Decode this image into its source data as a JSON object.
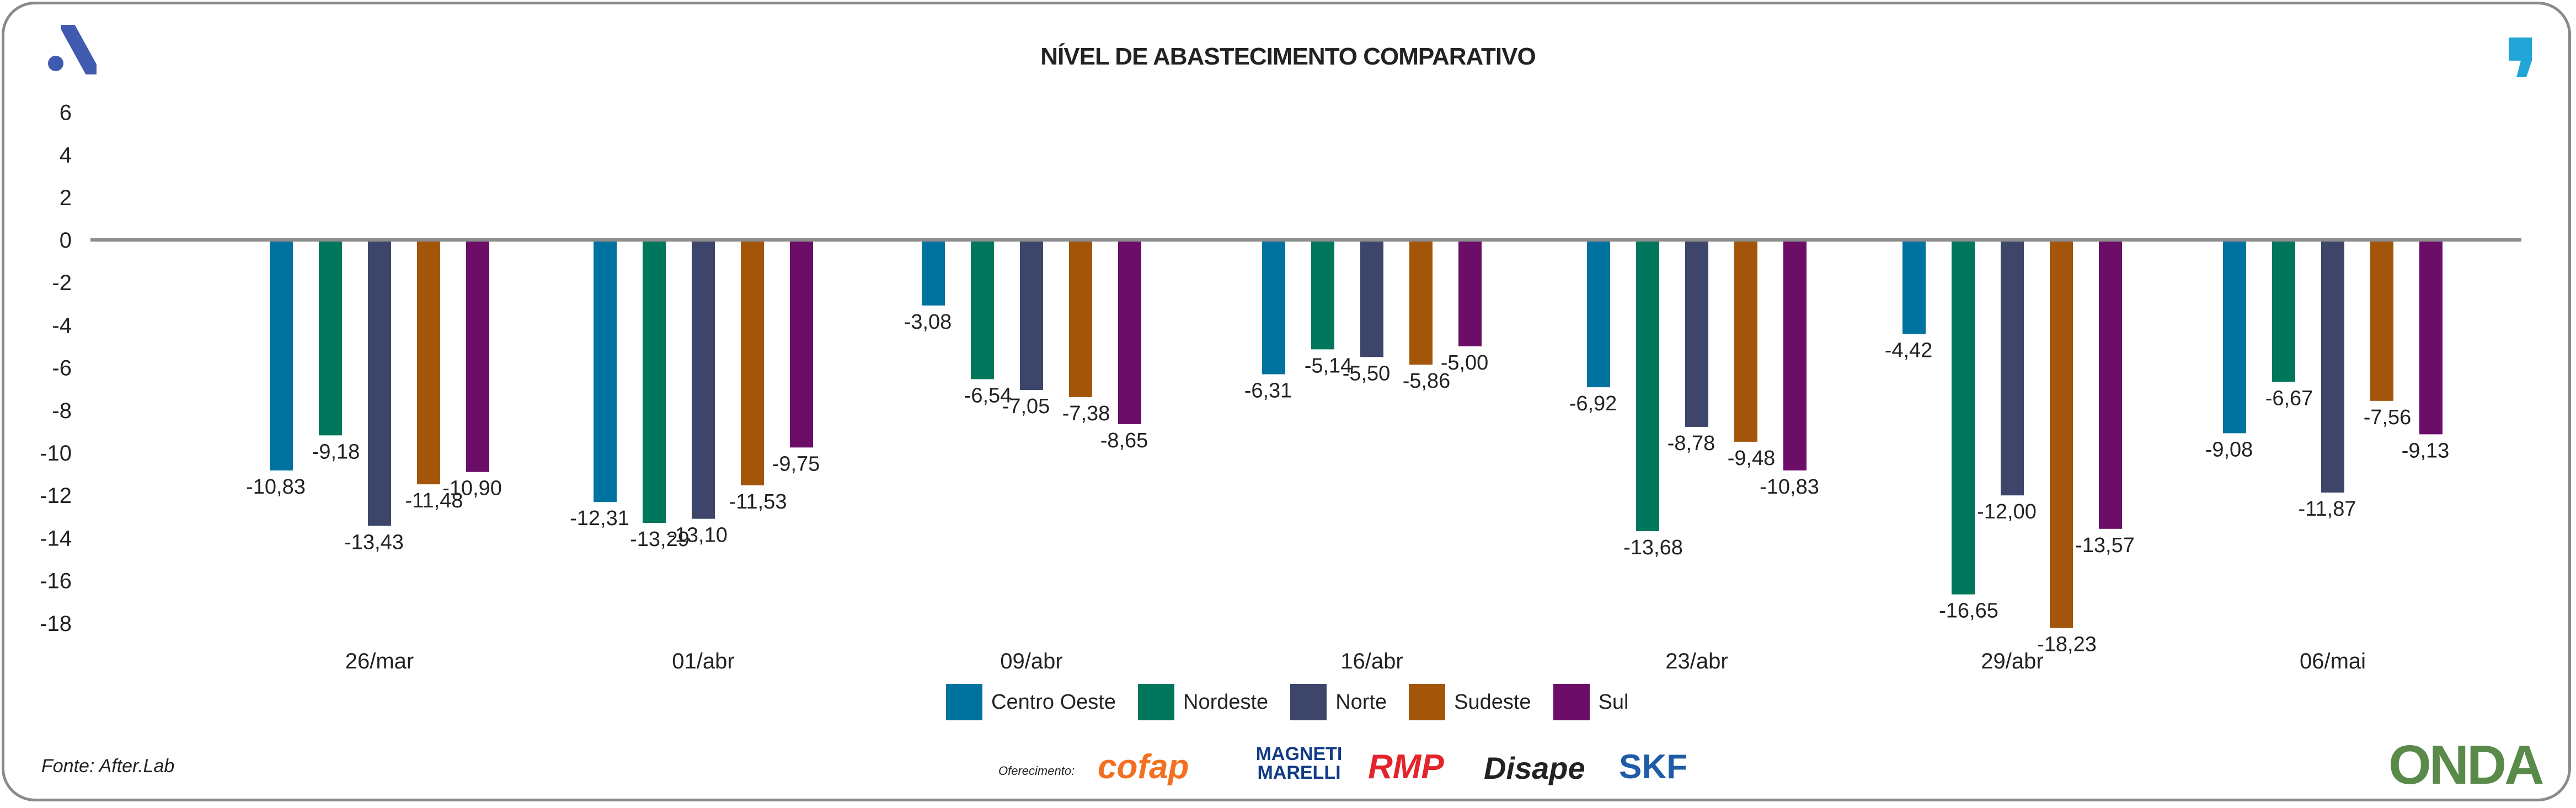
{
  "title": "NÍVEL DE ABASTECIMENTO COMPARATIVO",
  "source": "Fonte: After.Lab",
  "sponsor_label": "Oferecimento:",
  "sponsors": [
    "cofap",
    "MAGNETI MARELLI",
    "RMP",
    "Disape",
    "SKF"
  ],
  "brand_logo": "ONDA",
  "chart_data": {
    "type": "bar",
    "title": "NÍVEL DE ABASTECIMENTO COMPARATIVO",
    "categories": [
      "26/mar",
      "01/abr",
      "09/abr",
      "16/abr",
      "23/abr",
      "29/abr",
      "06/mai"
    ],
    "ylim": [
      -18,
      6
    ],
    "yticks": [
      6,
      4,
      2,
      0,
      -2,
      -4,
      -6,
      -8,
      -10,
      -12,
      -14,
      -16,
      -18
    ],
    "grid": false,
    "legend": "bottom",
    "series": [
      {
        "name": "Centro Oeste",
        "color": "#00729f",
        "values": [
          -10.83,
          -12.31,
          -3.08,
          -6.31,
          -6.92,
          -4.42,
          -9.08
        ],
        "labels": [
          "-10,83",
          "-12,31",
          "-3,08",
          "-6,31",
          "-6,92",
          "-4,42",
          "-9,08"
        ]
      },
      {
        "name": "Nordeste",
        "color": "#00775c",
        "values": [
          -9.18,
          -13.29,
          -6.54,
          -5.14,
          -13.68,
          -16.65,
          -6.67
        ],
        "labels": [
          "-9,18",
          "-13,29",
          "-6,54",
          "-5,14",
          "-13,68",
          "-16,65",
          "-6,67"
        ]
      },
      {
        "name": "Norte",
        "color": "#3e456b",
        "values": [
          -13.43,
          -13.1,
          -7.05,
          -5.5,
          -8.78,
          -12.0,
          -11.87
        ],
        "labels": [
          "-13,43",
          "-13,10",
          "-7,05",
          "-5,50",
          "-8,78",
          "-12,00",
          "-11,87"
        ]
      },
      {
        "name": "Sudeste",
        "color": "#a35509",
        "values": [
          -11.48,
          -11.53,
          -7.38,
          -5.86,
          -9.48,
          -18.23,
          -7.56
        ],
        "labels": [
          "-11,48",
          "-11,53",
          "-7,38",
          "-5,86",
          "-9,48",
          "-18,23",
          "-7,56"
        ]
      },
      {
        "name": "Sul",
        "color": "#6c0d68",
        "values": [
          -10.9,
          -9.75,
          -8.65,
          -5.0,
          -10.83,
          -13.57,
          -9.13
        ],
        "labels": [
          "-10,90",
          "-9,75",
          "-8,65",
          "-5,00",
          "-10,83",
          "-13,57",
          "-9,13"
        ]
      }
    ]
  }
}
